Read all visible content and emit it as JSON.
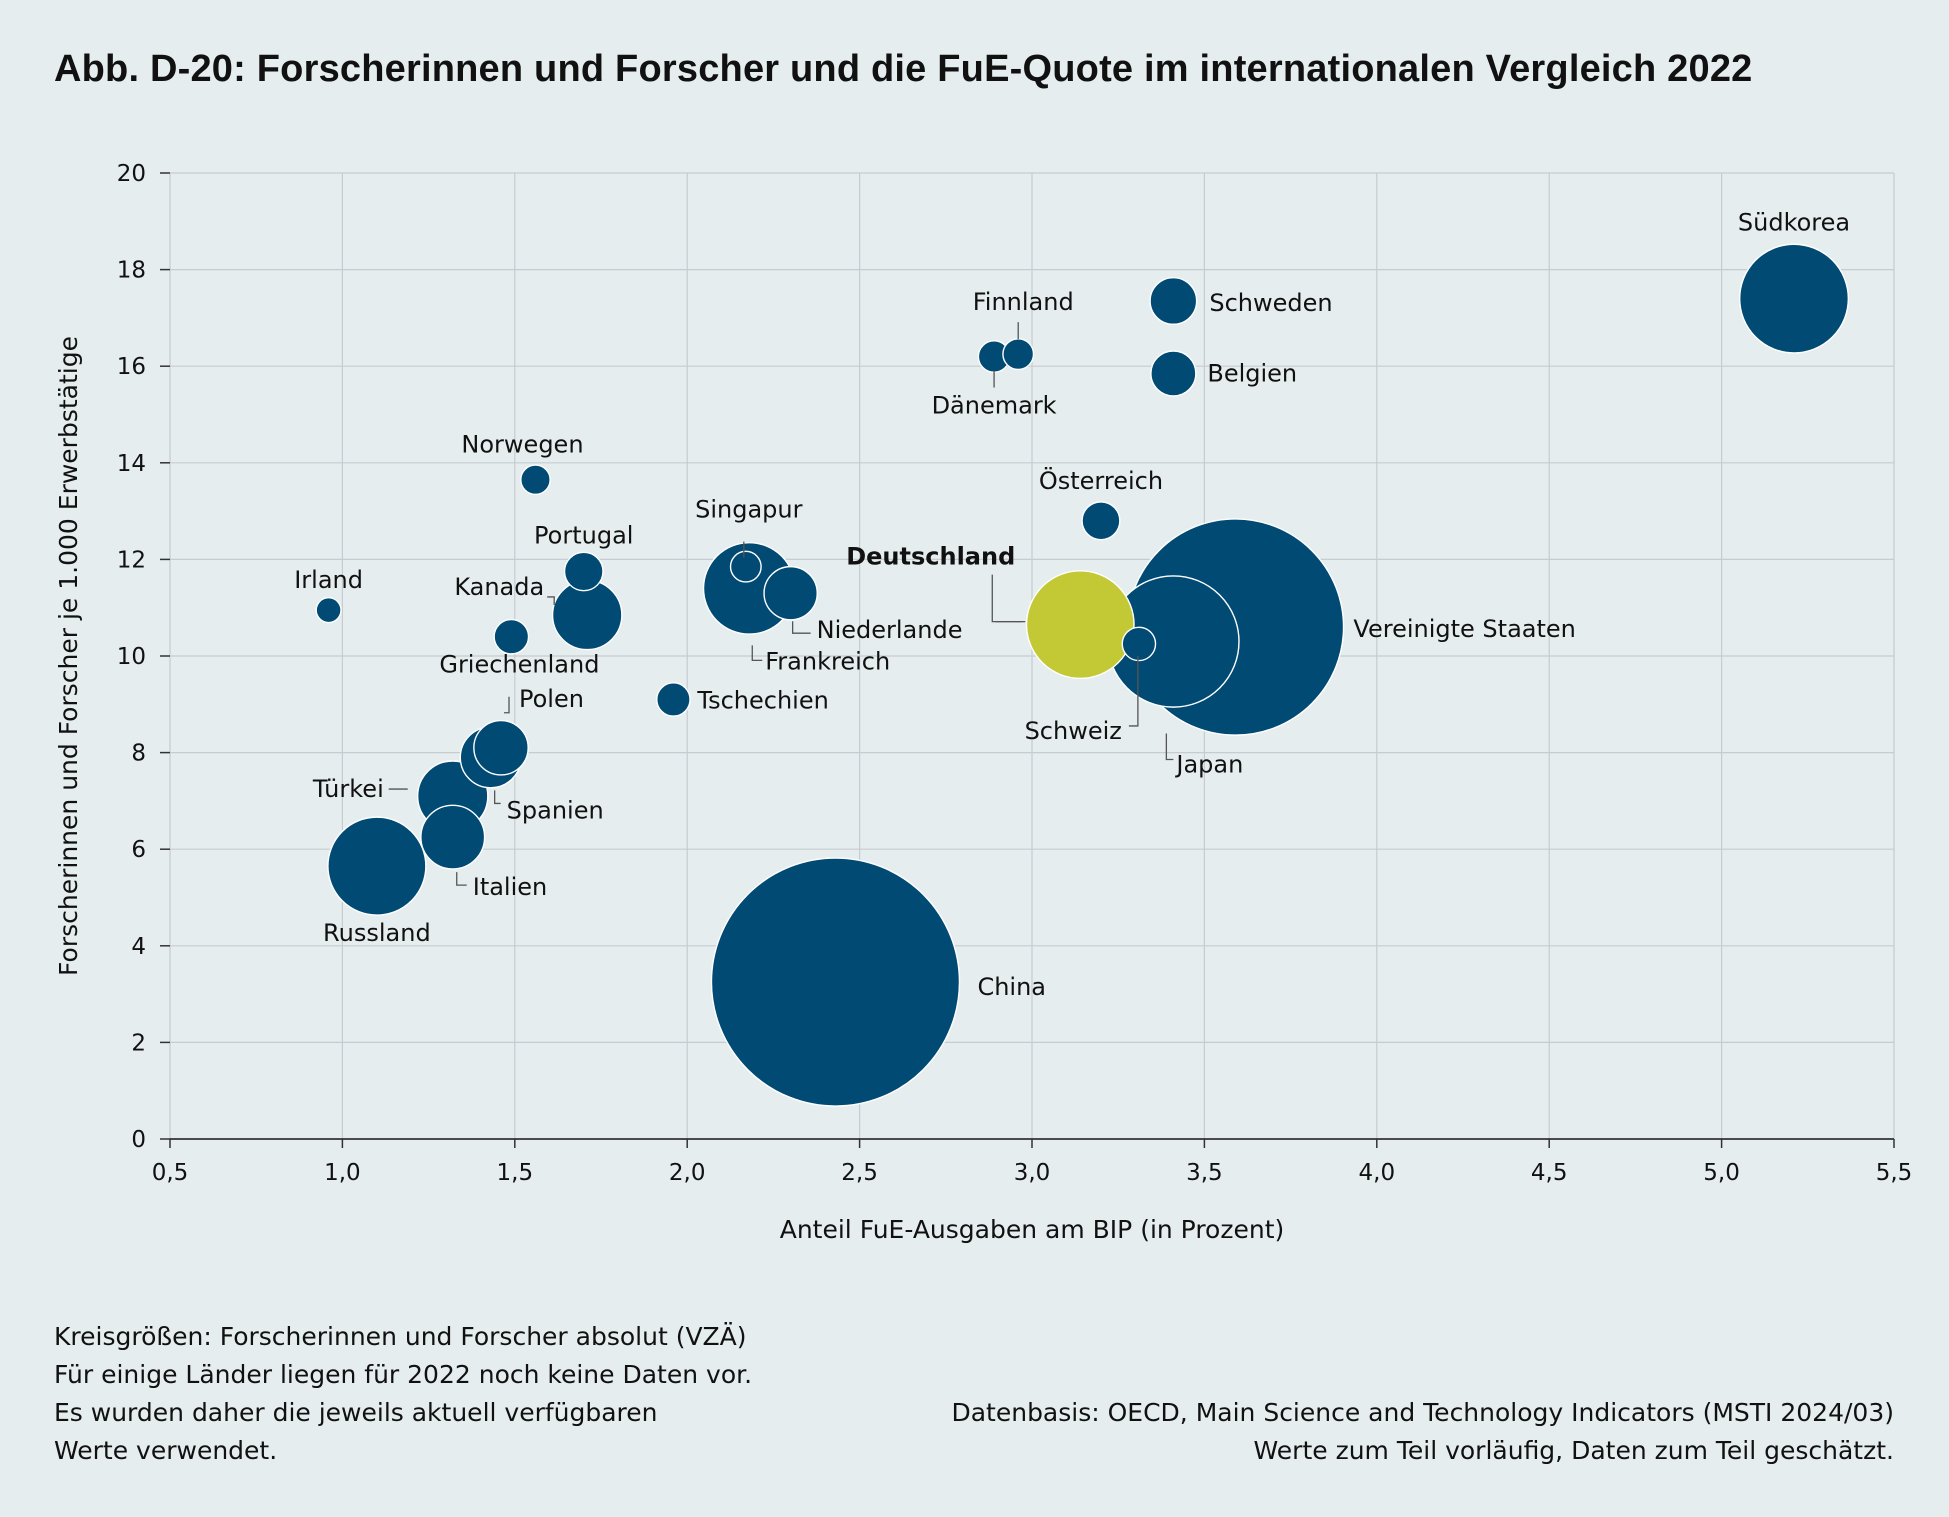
{
  "chart_data": {
    "type": "scatter",
    "title": "Abb. D-20: Forscherinnen und Forscher und die FuE-Quote im internationalen Vergleich 2022",
    "xlabel": "Anteil FuE-Ausgaben am BIP (in Prozent)",
    "ylabel": "Forscherinnen und Forscher je 1.000 Erwerbstätige",
    "xlim": [
      0.5,
      5.5
    ],
    "ylim": [
      0,
      20
    ],
    "xticks": [
      "0,5",
      "1,0",
      "1,5",
      "2,0",
      "2,5",
      "3,0",
      "3,5",
      "4,0",
      "4,5",
      "5,0",
      "5,5"
    ],
    "yticks": [
      "0",
      "2",
      "4",
      "6",
      "8",
      "10",
      "12",
      "14",
      "16",
      "18",
      "20"
    ],
    "grid": true,
    "size_meaning": "Forscherinnen und Forscher absolut (VZÄ)",
    "colors": {
      "default": "#004a74",
      "highlight": "#c3c935",
      "grid": "#c6cccf",
      "background": "#e5edef"
    },
    "points": [
      {
        "name": "Vereinigte Staaten",
        "x": 3.59,
        "y": 10.6,
        "size": 1900
      },
      {
        "name": "China",
        "x": 2.43,
        "y": 3.25,
        "size": 2500
      },
      {
        "name": "Japan",
        "x": 3.41,
        "y": 10.3,
        "size": 700
      },
      {
        "name": "Deutschland",
        "x": 3.14,
        "y": 10.65,
        "size": 470,
        "highlight": true
      },
      {
        "name": "Südkorea",
        "x": 5.21,
        "y": 17.4,
        "size": 480
      },
      {
        "name": "Russland",
        "x": 1.1,
        "y": 5.65,
        "size": 390
      },
      {
        "name": "Frankreich",
        "x": 2.18,
        "y": 11.4,
        "size": 340
      },
      {
        "name": "Kanada",
        "x": 1.71,
        "y": 10.85,
        "size": 195
      },
      {
        "name": "Türkei",
        "x": 1.32,
        "y": 7.1,
        "size": 200
      },
      {
        "name": "Italien",
        "x": 1.32,
        "y": 6.25,
        "size": 165
      },
      {
        "name": "Spanien",
        "x": 1.43,
        "y": 7.9,
        "size": 150
      },
      {
        "name": "Polen",
        "x": 1.46,
        "y": 8.1,
        "size": 120
      },
      {
        "name": "Niederlande",
        "x": 2.3,
        "y": 11.3,
        "size": 115
      },
      {
        "name": "Schweden",
        "x": 3.41,
        "y": 17.35,
        "size": 88
      },
      {
        "name": "Belgien",
        "x": 3.41,
        "y": 15.85,
        "size": 82
      },
      {
        "name": "Portugal",
        "x": 1.7,
        "y": 11.75,
        "size": 60
      },
      {
        "name": "Österreich",
        "x": 3.2,
        "y": 12.8,
        "size": 58
      },
      {
        "name": "Schweiz",
        "x": 3.31,
        "y": 10.25,
        "size": 45
      },
      {
        "name": "Tschechien",
        "x": 1.96,
        "y": 9.1,
        "size": 45
      },
      {
        "name": "Dänemark",
        "x": 2.89,
        "y": 16.2,
        "size": 40
      },
      {
        "name": "Finnland",
        "x": 2.96,
        "y": 16.25,
        "size": 38
      },
      {
        "name": "Griechenland",
        "x": 1.49,
        "y": 10.4,
        "size": 48
      },
      {
        "name": "Singapur",
        "x": 2.17,
        "y": 11.85,
        "size": 38
      },
      {
        "name": "Norwegen",
        "x": 1.56,
        "y": 13.65,
        "size": 35
      },
      {
        "name": "Irland",
        "x": 0.96,
        "y": 10.95,
        "size": 25
      }
    ]
  },
  "footnotes": {
    "left": [
      "Kreisgrößen: Forscherinnen und Forscher absolut (VZÄ)",
      "Für einige Länder liegen für 2022 noch keine Daten vor.",
      "Es wurden daher die jeweils aktuell verfügbaren",
      "Werte verwendet."
    ],
    "right": [
      "Datenbasis: OECD, Main Science and Technology Indicators (MSTI 2024/03)",
      "Werte zum Teil vorläufig, Daten zum Teil geschätzt."
    ]
  }
}
